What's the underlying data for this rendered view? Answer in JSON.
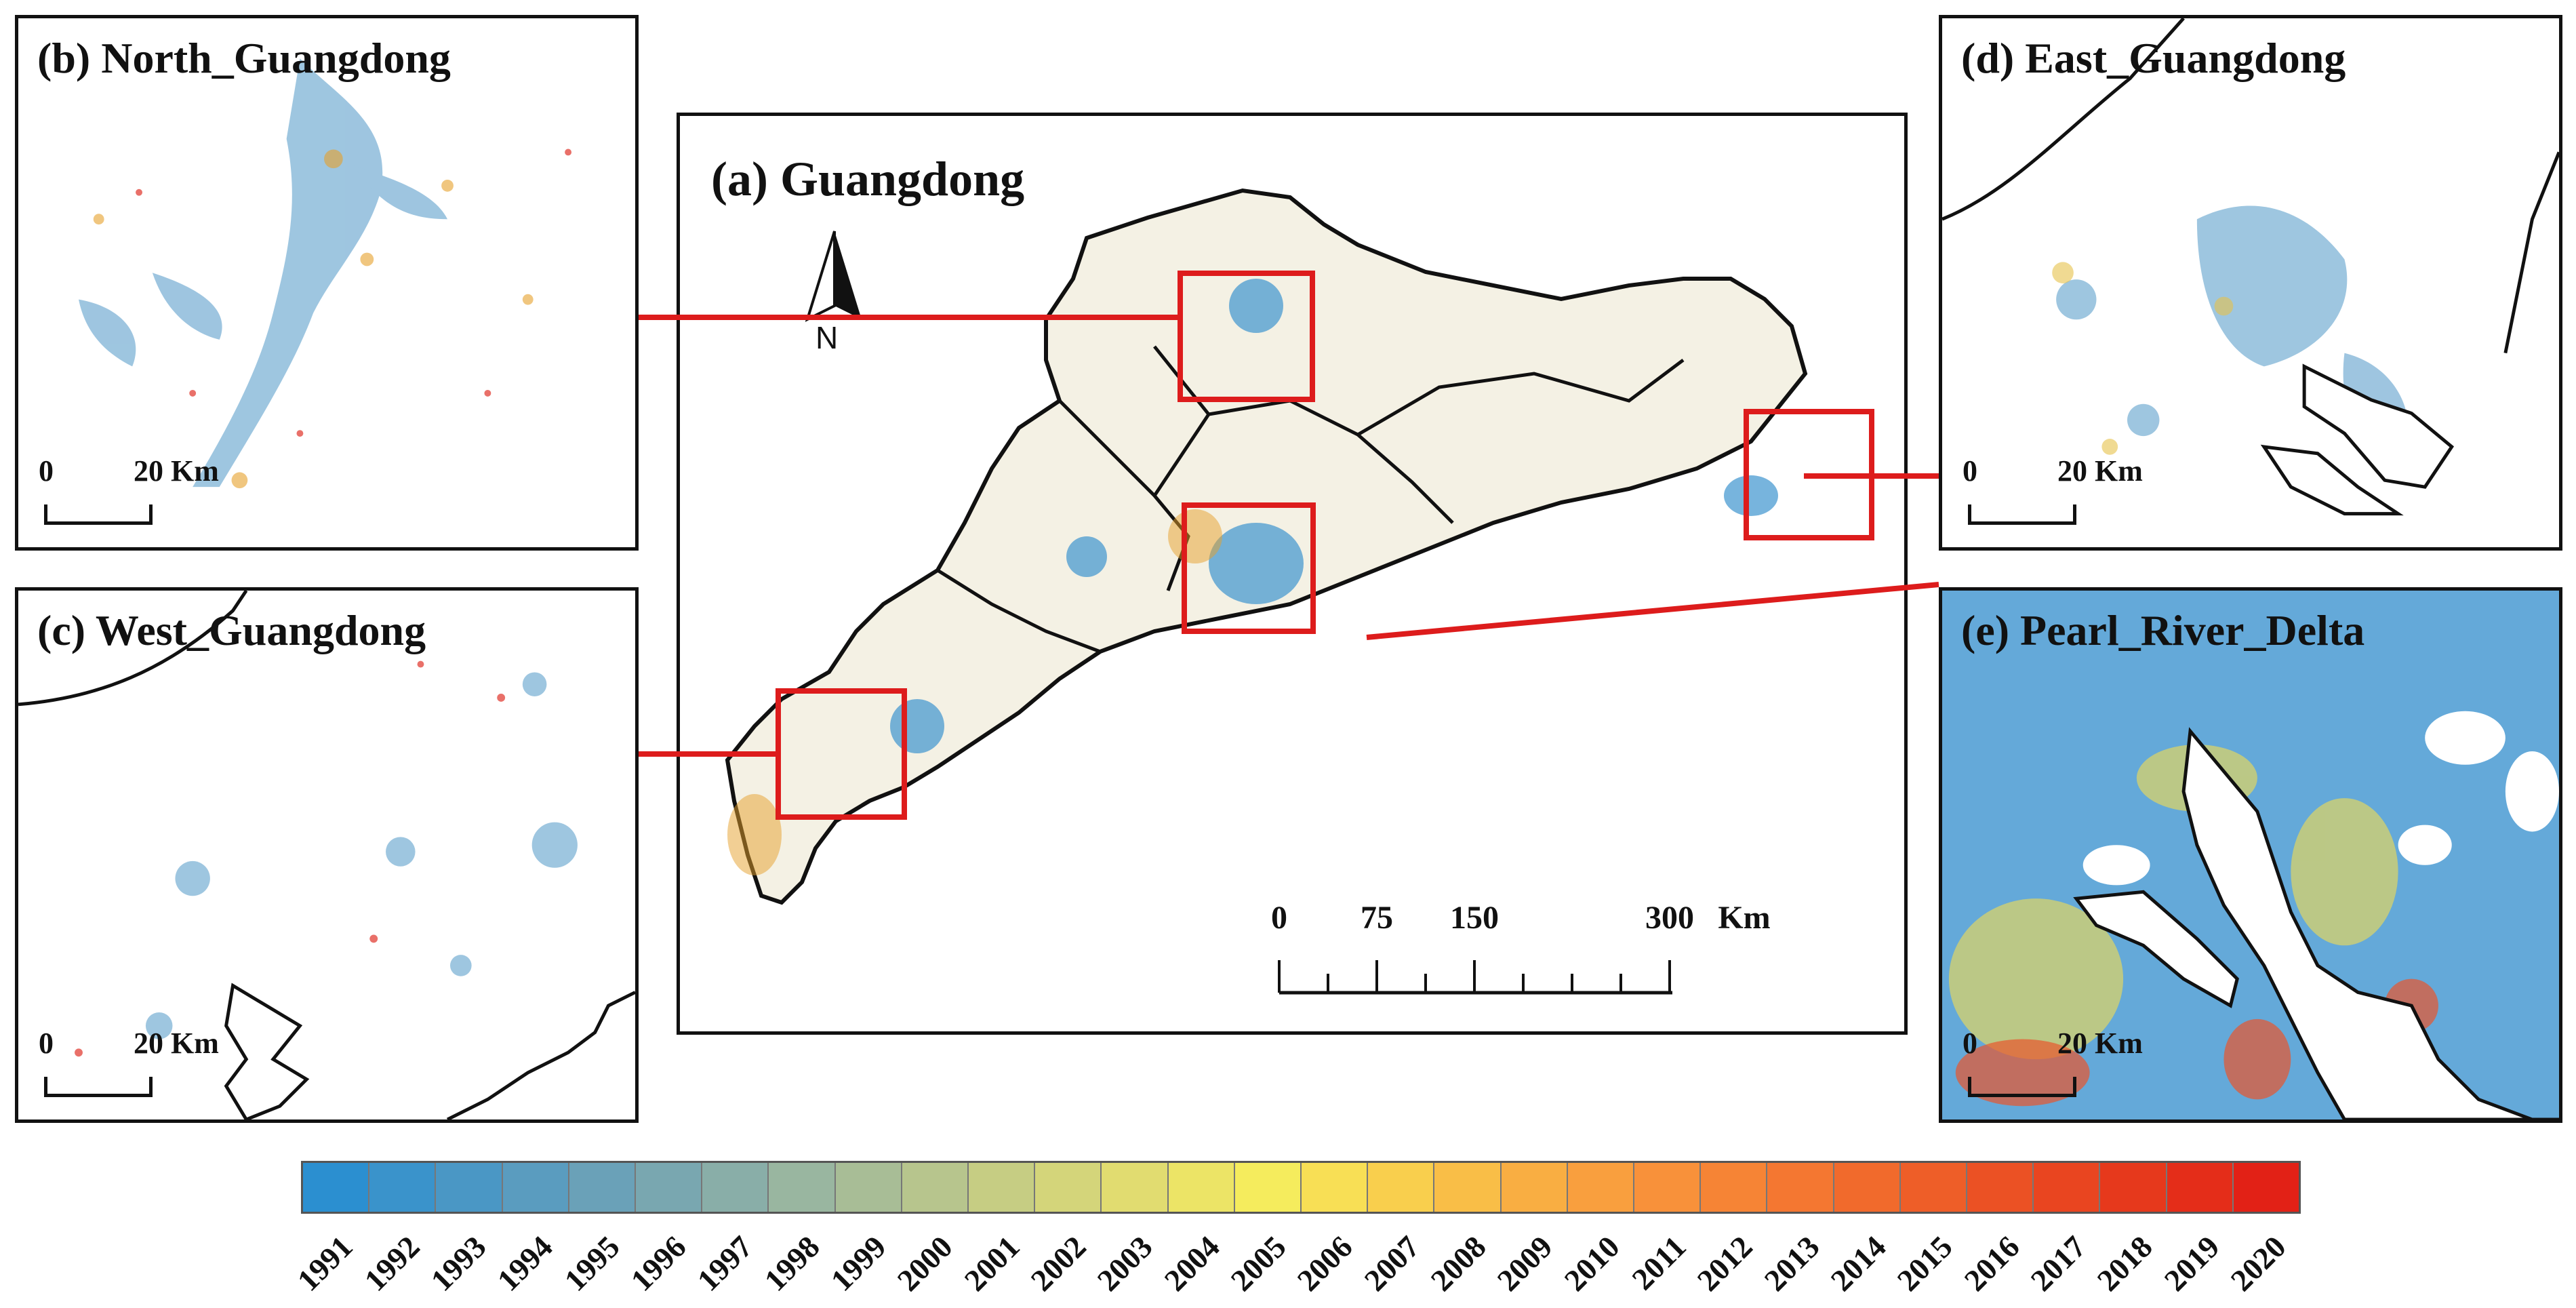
{
  "panels": {
    "main": {
      "title": "(a) Guangdong",
      "north_label": "N",
      "scale": {
        "labels": [
          "0",
          "75",
          "150",
          "300"
        ],
        "unit": "Km"
      }
    },
    "north": {
      "title": "(b) North_Guangdong",
      "scale": {
        "start": "0",
        "end": "20 Km"
      }
    },
    "west": {
      "title": "(c) West_Guangdong",
      "scale": {
        "start": "0",
        "end": "20 Km"
      }
    },
    "east": {
      "title": "(d) East_Guangdong",
      "scale": {
        "start": "0",
        "end": "20 Km"
      }
    },
    "prd": {
      "title": "(e) Pearl_River_Delta",
      "scale": {
        "start": "0",
        "end": "20 Km"
      }
    }
  },
  "legend": {
    "years": [
      "1991",
      "1992",
      "1993",
      "1994",
      "1995",
      "1996",
      "1997",
      "1998",
      "1999",
      "2000",
      "2001",
      "2002",
      "2003",
      "2004",
      "2005",
      "2006",
      "2007",
      "2008",
      "2009",
      "2010",
      "2011",
      "2012",
      "2013",
      "2014",
      "2015",
      "2016",
      "2017",
      "2018",
      "2019",
      "2020"
    ],
    "colors": [
      "#2b8fd0",
      "#3a93cb",
      "#4a97c5",
      "#5a9cbf",
      "#6aa1b8",
      "#79a7b0",
      "#89aea8",
      "#99b6a0",
      "#a8bd96",
      "#b7c58d",
      "#c6cd83",
      "#d4d57a",
      "#e1dc70",
      "#ece466",
      "#f5ec5d",
      "#f8df55",
      "#f9cf4d",
      "#f9be47",
      "#f9ae42",
      "#f99f3e",
      "#f8913a",
      "#f68435",
      "#f47731",
      "#f16a2c",
      "#ee5e28",
      "#eb5124",
      "#e94520",
      "#e6391c",
      "#e42d19",
      "#e22116"
    ]
  },
  "colors": {
    "boundary": "#111111",
    "highlight": "#dd1c1c",
    "urban_dominant": "#3d94cf"
  }
}
